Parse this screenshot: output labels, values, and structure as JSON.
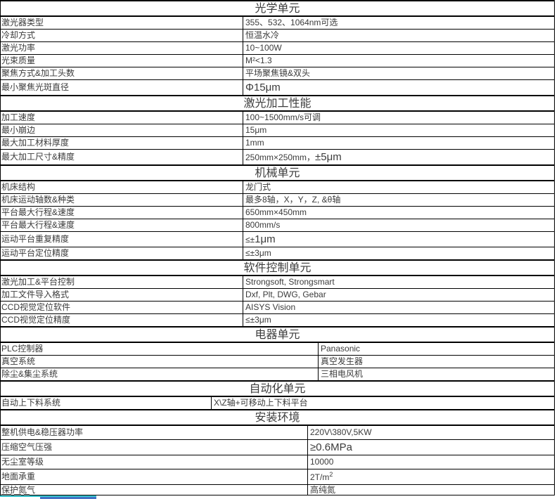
{
  "table": {
    "sections": [
      {
        "title": "光学单元",
        "split": 345,
        "rows": [
          {
            "label": "激光器类型",
            "value": "355、532、1064nm可选"
          },
          {
            "label": "冷却方式",
            "value": "恒温水冷"
          },
          {
            "label": "激光功率",
            "value": "10~100W"
          },
          {
            "label": "光束质量",
            "value": "M²<1.3"
          },
          {
            "label": "聚焦方式&加工头数",
            "value": "平场聚焦镜&双头"
          },
          {
            "label": "最小聚焦光斑直径",
            "value": [
              {
                "text": "Φ15μm",
                "large": true
              }
            ]
          }
        ]
      },
      {
        "title": "激光加工性能",
        "split": 345,
        "rows": [
          {
            "label": "加工速度",
            "value": "100~1500mm/s可调"
          },
          {
            "label": "最小崩边",
            "value": "15μm"
          },
          {
            "label": "最大加工材料厚度",
            "value": "1mm"
          },
          {
            "label": "最大加工尺寸&精度",
            "value": [
              {
                "text": "250mm×250mm，"
              },
              {
                "text": "±5μm",
                "large": true
              }
            ]
          }
        ]
      },
      {
        "title": "机械单元",
        "split": 345,
        "rows": [
          {
            "label": "机床结构",
            "value": "龙门式"
          },
          {
            "label": "机床运动轴数&种类",
            "value": "最多8轴，X，Y，Z, &θ轴"
          },
          {
            "label": "平台最大行程&速度",
            "value": "650mm×450mm"
          },
          {
            "label": "平台最大行程&速度",
            "value": "800mm/s"
          },
          {
            "label": "运动平台重复精度",
            "value": [
              {
                "text": "≤±"
              },
              {
                "text": "1μm",
                "large": true
              }
            ]
          },
          {
            "label": "运动平台定位精度",
            "value": "≤±3μm"
          }
        ]
      },
      {
        "title": "软件控制单元",
        "split": 345,
        "rows": [
          {
            "label": "激光加工&平台控制",
            "value": "Strongsoft, Strongsmart"
          },
          {
            "label": "加工文件导入格式",
            "value": "Dxf, Plt, DWG, Gebar"
          },
          {
            "label": "CCD视觉定位软件",
            "value": "AISYS Vision"
          },
          {
            "label": "CCD视觉定位精度",
            "value": "≤±3μm"
          }
        ]
      },
      {
        "title": "电器单元",
        "split": 452,
        "rows": [
          {
            "label": "PLC控制器",
            "value": "Panasonic"
          },
          {
            "label": "真空系统",
            "value": "真空发生器"
          },
          {
            "label": "除尘&集尘系统",
            "value": "三相电风机"
          }
        ]
      },
      {
        "title": "自动化单元",
        "split": 300,
        "rows": [
          {
            "label": "自动上下料系统",
            "value": "X\\Z轴+可移动上下料平台"
          }
        ]
      },
      {
        "title": "安装环境",
        "split": 437,
        "rows": [
          {
            "label": "整机供电&稳压器功率",
            "value": "220V\\380V,5KW"
          },
          {
            "label": "压缩空气压强",
            "value": [
              {
                "text": "≥0.6MPa",
                "large": true
              }
            ]
          },
          {
            "label": "无尘室等级",
            "value": "10000"
          },
          {
            "label": "地面承重",
            "value": [
              {
                "text": " 2T/m"
              },
              {
                "text": "2",
                "sup": true
              }
            ]
          },
          {
            "label": "保护氮气",
            "value": "高纯氮"
          }
        ]
      }
    ]
  },
  "footer": {
    "teal_line_color": "#35c4cc",
    "blue_line_color": "#4472c4"
  }
}
